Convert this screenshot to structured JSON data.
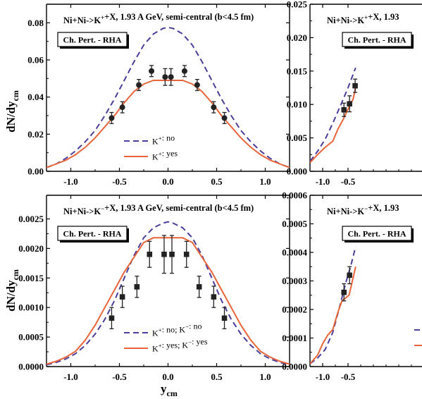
{
  "colors": {
    "no": "#4b3e9a",
    "yes": "#e8643a",
    "axis": "#000000",
    "marker": "#222222"
  },
  "chart_data": [
    {
      "type": "line",
      "panel": "top-left",
      "title": "Ni+Ni->K⁺+X, 1.93 A GeV,  semi-central (b<4.5 fm)",
      "badge": "Ch. Pert. - RHA",
      "ylabel": "dN/dy",
      "ylabel_sub": "cm",
      "xlabel": "",
      "xlim": [
        -1.25,
        1.25
      ],
      "ylim": [
        0.0,
        0.09
      ],
      "xticks": [
        -1.0,
        -0.5,
        0.0,
        0.5,
        1.0
      ],
      "xtick_labels": [
        "-1.0",
        "-0.5",
        "0.0",
        "0.5",
        "1.0"
      ],
      "yticks": [
        0.0,
        0.02,
        0.04,
        0.06,
        0.08
      ],
      "ytick_labels": [
        "0.00",
        "0.02",
        "0.04",
        "0.06",
        "0.08"
      ],
      "legend_position": "lower-center",
      "marker": "circle",
      "series": [
        {
          "name": "K⁺: no",
          "style": "dashed",
          "colorKey": "no",
          "x": [
            -1.25,
            -1.15,
            -1.05,
            -0.95,
            -0.85,
            -0.75,
            -0.65,
            -0.55,
            -0.45,
            -0.35,
            -0.25,
            -0.15,
            -0.05,
            0.0,
            0.05,
            0.15,
            0.25,
            0.35,
            0.45,
            0.55,
            0.65,
            0.75,
            0.85,
            0.95,
            1.05,
            1.15,
            1.25
          ],
          "y": [
            0.002,
            0.004,
            0.007,
            0.011,
            0.016,
            0.022,
            0.03,
            0.039,
            0.049,
            0.059,
            0.068,
            0.074,
            0.077,
            0.0775,
            0.077,
            0.074,
            0.068,
            0.059,
            0.049,
            0.039,
            0.03,
            0.022,
            0.016,
            0.011,
            0.007,
            0.004,
            0.002
          ]
        },
        {
          "name": "K⁺: yes",
          "style": "solid",
          "colorKey": "yes",
          "x": [
            -1.25,
            -1.15,
            -1.05,
            -0.95,
            -0.85,
            -0.75,
            -0.65,
            -0.55,
            -0.45,
            -0.35,
            -0.25,
            -0.15,
            -0.05,
            0.0,
            0.05,
            0.15,
            0.25,
            0.35,
            0.45,
            0.55,
            0.65,
            0.75,
            0.85,
            0.95,
            1.05,
            1.15,
            1.25
          ],
          "y": [
            0.002,
            0.004,
            0.006,
            0.009,
            0.013,
            0.018,
            0.024,
            0.03,
            0.037,
            0.043,
            0.047,
            0.049,
            0.049,
            0.049,
            0.049,
            0.049,
            0.047,
            0.043,
            0.037,
            0.03,
            0.024,
            0.018,
            0.013,
            0.009,
            0.006,
            0.004,
            0.002
          ]
        }
      ],
      "points": {
        "x": [
          -0.58,
          -0.47,
          -0.3,
          -0.17,
          -0.03,
          0.03,
          0.17,
          0.3,
          0.47,
          0.58
        ],
        "y": [
          0.0287,
          0.0345,
          0.0465,
          0.054,
          0.0508,
          0.0508,
          0.054,
          0.0465,
          0.0345,
          0.0287
        ],
        "err": [
          0.003,
          0.003,
          0.003,
          0.003,
          0.0045,
          0.0045,
          0.003,
          0.003,
          0.003,
          0.003
        ]
      }
    },
    {
      "type": "line",
      "panel": "top-right",
      "title": "Ni+Ni->K⁺+X, 1.93",
      "badge": "Ch. Pert. - RHA",
      "xlim": [
        -1.25,
        1.25
      ],
      "ylim": [
        0.0,
        0.025
      ],
      "xticks": [
        -1.0,
        -0.5
      ],
      "xtick_labels": [
        "-1.0",
        "-0.5"
      ],
      "yticks": [
        0.0,
        0.005,
        0.01,
        0.015,
        0.02,
        0.025
      ],
      "ytick_labels": [
        "0.000",
        "0.005",
        "0.010",
        "0.015",
        "0.020",
        "0.025"
      ],
      "marker": "square",
      "series": [
        {
          "name": "",
          "style": "dashed",
          "colorKey": "no",
          "x": [
            -1.25,
            -1.1,
            -0.95,
            -0.8,
            -0.65,
            -0.5,
            -0.35
          ],
          "y": [
            0.0015,
            0.003,
            0.0048,
            0.0072,
            0.0098,
            0.0125,
            0.0155
          ]
        },
        {
          "name": "",
          "style": "solid",
          "colorKey": "yes",
          "x": [
            -1.25,
            -1.1,
            -0.95,
            -0.8,
            -0.7,
            -0.6,
            -0.5,
            -0.4,
            -0.35
          ],
          "y": [
            0.0013,
            0.0025,
            0.0036,
            0.0045,
            0.0063,
            0.0077,
            0.0093,
            0.0108,
            0.0125
          ]
        }
      ],
      "points": {
        "x": [
          -0.58,
          -0.47,
          -0.36
        ],
        "y": [
          0.0092,
          0.0101,
          0.0128
        ],
        "err": [
          0.001,
          0.0012,
          0.001
        ]
      }
    },
    {
      "type": "line",
      "panel": "bottom-left",
      "title": "Ni+Ni->K⁻+X, 1.93 A GeV,  semi-central (b<4.5 fm)",
      "badge": "Ch. Pert. - RHA",
      "ylabel": "dN/dy",
      "ylabel_sub": "cm",
      "xlabel": "y",
      "xlabel_sub": "cm",
      "xlim": [
        -1.25,
        1.25
      ],
      "ylim": [
        0.0,
        0.0029
      ],
      "xticks": [
        -1.0,
        -0.5,
        0.0,
        0.5,
        1.0
      ],
      "xtick_labels": [
        "-1.0",
        "-0.5",
        "0.0",
        "0.5",
        "1.0"
      ],
      "yticks": [
        0.0,
        0.0005,
        0.001,
        0.0015,
        0.002,
        0.0025
      ],
      "ytick_labels": [
        "0.0000",
        "0.0005",
        "0.0010",
        "0.0015",
        "0.0020",
        "0.0025"
      ],
      "legend_position": "lower-center",
      "marker": "square",
      "series": [
        {
          "name": "K⁺: no;  K⁻: no",
          "style": "dashed",
          "colorKey": "no",
          "x": [
            -1.25,
            -1.15,
            -1.05,
            -0.95,
            -0.85,
            -0.75,
            -0.65,
            -0.55,
            -0.45,
            -0.35,
            -0.25,
            -0.15,
            -0.05,
            0.0,
            0.05,
            0.15,
            0.25,
            0.35,
            0.45,
            0.55,
            0.65,
            0.75,
            0.85,
            0.95,
            1.05,
            1.15,
            1.25
          ],
          "y": [
            3e-05,
            7e-05,
            0.00013,
            0.00022,
            0.00036,
            0.00055,
            0.0008,
            0.00112,
            0.0015,
            0.00188,
            0.00218,
            0.00235,
            0.00243,
            0.00245,
            0.00243,
            0.00235,
            0.00218,
            0.00188,
            0.0015,
            0.00112,
            0.0008,
            0.00055,
            0.00036,
            0.00022,
            0.00013,
            7e-05,
            3e-05
          ]
        },
        {
          "name": "K⁺: yes; K⁻: yes",
          "style": "solid",
          "colorKey": "yes",
          "x": [
            -1.25,
            -1.15,
            -1.05,
            -0.95,
            -0.85,
            -0.75,
            -0.65,
            -0.55,
            -0.45,
            -0.35,
            -0.25,
            -0.15,
            -0.05,
            0.0,
            0.05,
            0.15,
            0.25,
            0.35,
            0.45,
            0.55,
            0.65,
            0.75,
            0.85,
            0.95,
            1.05,
            1.15,
            1.25
          ],
          "y": [
            4e-05,
            9e-05,
            0.00016,
            0.00026,
            0.00045,
            0.0007,
            0.001,
            0.0013,
            0.0016,
            0.00185,
            0.0021,
            0.00218,
            0.00218,
            0.00218,
            0.00218,
            0.00218,
            0.0021,
            0.00185,
            0.0016,
            0.0013,
            0.001,
            0.0007,
            0.00045,
            0.00026,
            0.00016,
            9e-05,
            4e-05
          ]
        }
      ],
      "points": {
        "x": [
          -0.58,
          -0.47,
          -0.32,
          -0.19,
          -0.04,
          0.04,
          0.19,
          0.32,
          0.47,
          0.58
        ],
        "y": [
          0.00082,
          0.00118,
          0.00135,
          0.0019,
          0.0019,
          0.0019,
          0.0019,
          0.00135,
          0.00118,
          0.00082
        ],
        "err": [
          0.00018,
          0.00018,
          0.00018,
          0.00022,
          0.00032,
          0.00032,
          0.00022,
          0.00018,
          0.00018,
          0.00018
        ]
      }
    },
    {
      "type": "line",
      "panel": "bottom-right",
      "title": "Ni+Ni->K⁻+X, 1.93",
      "badge": "Ch. Pert. - RHA",
      "xlim": [
        -1.25,
        1.25
      ],
      "ylim": [
        0.0,
        0.0006
      ],
      "xticks": [
        -1.0,
        -0.5
      ],
      "xtick_labels": [
        "-1.0",
        "-0.5"
      ],
      "yticks": [
        0.0,
        0.0001,
        0.0002,
        0.0003,
        0.0004,
        0.0005,
        0.0006
      ],
      "ytick_labels": [
        "0.0000",
        "0.0001",
        "0.0002",
        "0.0003",
        "0.0004",
        "0.0005",
        "0.0006"
      ],
      "marker": "square",
      "series": [
        {
          "name": "",
          "style": "dashed",
          "colorKey": "no",
          "x": [
            -1.25,
            -1.1,
            -0.95,
            -0.8,
            -0.65,
            -0.55,
            -0.45,
            -0.35
          ],
          "y": [
            1e-05,
            3e-05,
            6e-05,
            0.00012,
            0.00022,
            0.00029,
            0.00035,
            0.00042
          ]
        },
        {
          "name": "",
          "style": "solid",
          "colorKey": "yes",
          "x": [
            -1.25,
            -1.1,
            -1.0,
            -0.9,
            -0.8,
            -0.7,
            -0.62,
            -0.55,
            -0.48,
            -0.4,
            -0.35
          ],
          "y": [
            1e-05,
            4e-05,
            8e-05,
            0.00011,
            0.00013,
            0.00019,
            0.00023,
            0.00024,
            0.00025,
            0.00031,
            0.00035
          ]
        }
      ],
      "points": {
        "x": [
          -0.58,
          -0.47
        ],
        "y": [
          0.00026,
          0.00032
        ],
        "err": [
          3e-05,
          3e-05
        ]
      }
    }
  ]
}
